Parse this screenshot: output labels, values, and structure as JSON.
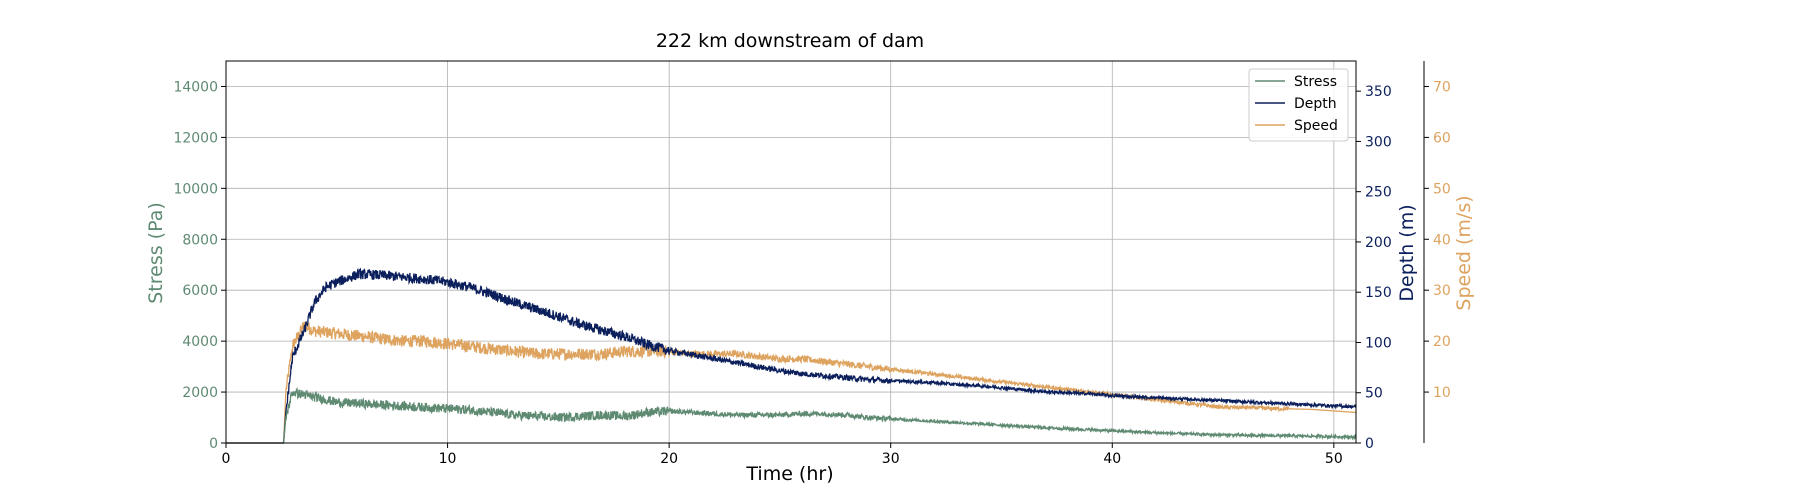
{
  "chart_data": {
    "type": "line",
    "title": "222 km downstream of dam",
    "xlabel": "Time (hr)",
    "xlim": [
      0,
      51
    ],
    "x_ticks": [
      0,
      10,
      20,
      30,
      40,
      50
    ],
    "grid": true,
    "legend_placement": "top-right",
    "colors": {
      "stress": "#5f8a72",
      "depth": "#0b1f5c",
      "speed": "#dda35f"
    },
    "axes": {
      "stress": {
        "label": "Stress (Pa)",
        "lim": [
          0,
          15000
        ],
        "ticks": [
          0,
          2000,
          4000,
          6000,
          8000,
          10000,
          12000,
          14000
        ]
      },
      "depth": {
        "label": "Depth (m)",
        "lim": [
          0,
          380
        ],
        "ticks": [
          0,
          50,
          100,
          150,
          200,
          250,
          300,
          350
        ]
      },
      "speed": {
        "label": "Speed (m/s)",
        "lim": [
          0,
          75
        ],
        "ticks": [
          10,
          20,
          30,
          40,
          50,
          60,
          70
        ]
      }
    },
    "series": [
      {
        "name": "Stress",
        "axis": "stress",
        "x": [
          0,
          2.6,
          2.7,
          3.0,
          3.5,
          4.0,
          5,
          6,
          7,
          8,
          9,
          10,
          11,
          12,
          13,
          14,
          15,
          16,
          17,
          18,
          19,
          20,
          21,
          22,
          23,
          24,
          25,
          26,
          27,
          28,
          29,
          30,
          31,
          32,
          33,
          34,
          35,
          36,
          37,
          38,
          39,
          40,
          41,
          42,
          43,
          44,
          45,
          46,
          47,
          48,
          49,
          50,
          51
        ],
        "y": [
          0,
          0,
          1000,
          2000,
          1900,
          1800,
          1600,
          1550,
          1500,
          1450,
          1400,
          1350,
          1300,
          1200,
          1100,
          1050,
          1000,
          1050,
          1100,
          1050,
          1200,
          1250,
          1200,
          1150,
          1100,
          1100,
          1100,
          1150,
          1150,
          1100,
          1000,
          950,
          900,
          850,
          800,
          750,
          700,
          650,
          600,
          560,
          520,
          480,
          440,
          400,
          370,
          340,
          320,
          300,
          290,
          280,
          270,
          250,
          230
        ],
        "noise": 180
      },
      {
        "name": "Depth",
        "axis": "depth",
        "x": [
          0,
          2.6,
          2.7,
          3.0,
          3.5,
          4.0,
          4.5,
          5,
          6,
          7,
          8,
          9,
          10,
          11,
          12,
          13,
          14,
          15,
          16,
          17,
          18,
          19,
          20,
          21,
          22,
          23,
          24,
          25,
          26,
          27,
          28,
          29,
          30,
          31,
          32,
          33,
          34,
          35,
          36,
          37,
          38,
          39,
          40,
          41,
          42,
          43,
          44,
          45,
          46,
          47,
          48,
          49,
          50,
          51
        ],
        "y": [
          0,
          0,
          30,
          85,
          110,
          140,
          155,
          160,
          168,
          167,
          165,
          163,
          160,
          155,
          148,
          140,
          133,
          126,
          118,
          112,
          106,
          98,
          92,
          88,
          84,
          80,
          76,
          72,
          69,
          67,
          65,
          63,
          62,
          61,
          60,
          58,
          57,
          55,
          53,
          51,
          50,
          49,
          47,
          46,
          45,
          44,
          43,
          42,
          41,
          40,
          39,
          38,
          37,
          36
        ],
        "noise": 5
      },
      {
        "name": "Speed",
        "axis": "speed",
        "x": [
          0,
          2.6,
          2.7,
          3.0,
          3.5,
          4.0,
          5,
          6,
          7,
          8,
          9,
          10,
          11,
          12,
          13,
          14,
          15,
          16,
          17,
          18,
          19,
          20,
          21,
          22,
          23,
          24,
          25,
          26,
          27,
          28,
          29,
          30,
          31,
          32,
          33,
          34,
          35,
          36,
          37,
          38,
          39,
          40,
          41,
          42,
          43,
          44,
          45,
          46,
          47,
          48,
          49,
          50,
          51
        ],
        "y": [
          0,
          0,
          10,
          19,
          23,
          22,
          21.5,
          21,
          20.5,
          20,
          20,
          19.5,
          19,
          18.5,
          18,
          17.5,
          17.5,
          17.5,
          17.5,
          18,
          18,
          18,
          17.5,
          17.5,
          17.5,
          17,
          16.5,
          16.5,
          16,
          15.5,
          15,
          14.5,
          14,
          13.5,
          13,
          12.5,
          12,
          11.5,
          11,
          10.5,
          10,
          9.5,
          9,
          8.5,
          8,
          7.5,
          7,
          7,
          6.8,
          6.7,
          6.6,
          6.3,
          6
        ],
        "noise": 1.2
      }
    ]
  }
}
